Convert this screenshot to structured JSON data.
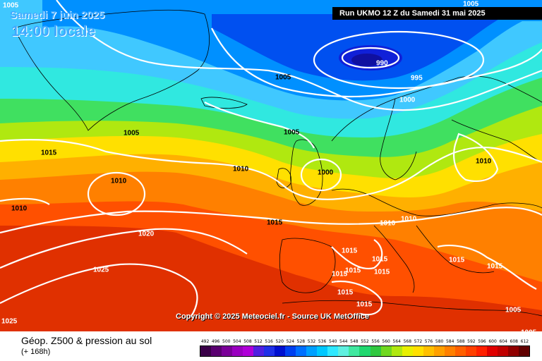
{
  "header": {
    "date": "Samedi 7 juin 2025",
    "time": "14:00 locale",
    "run": "Run UKMO 12 Z du Samedi 31 mai 2025"
  },
  "copyright": "Copyright © 2025 Meteociel.fr - Source UK MetOffice",
  "footer": {
    "title": "Géop. Z500 & pression au sol",
    "subtitle": "(+ 168h)"
  },
  "legend": {
    "values": [
      "492",
      "496",
      "500",
      "504",
      "508",
      "512",
      "516",
      "520",
      "524",
      "528",
      "532",
      "536",
      "540",
      "544",
      "548",
      "552",
      "556",
      "560",
      "564",
      "568",
      "572",
      "576",
      "580",
      "584",
      "588",
      "592",
      "596",
      "600",
      "604",
      "608",
      "612"
    ],
    "colors": [
      "#3a0048",
      "#5a0070",
      "#7a0098",
      "#9a00c0",
      "#b000d8",
      "#5020e0",
      "#2030e8",
      "#0010d0",
      "#0040f0",
      "#0070ff",
      "#00a0ff",
      "#00c8ff",
      "#30e8ff",
      "#60f0e0",
      "#40e8a0",
      "#20d870",
      "#30c840",
      "#70d820",
      "#b0e810",
      "#e8f000",
      "#ffe000",
      "#ffc000",
      "#ffa000",
      "#ff8000",
      "#ff6000",
      "#ff4000",
      "#ff2000",
      "#e00000",
      "#c00000",
      "#900000",
      "#600000"
    ]
  },
  "isobar_labels": [
    {
      "text": "1005",
      "color": "#ffffff"
    },
    {
      "text": "990",
      "color": "#ffffff"
    },
    {
      "text": "995",
      "color": "#ffffff"
    },
    {
      "text": "1000",
      "color": "#ffffff"
    },
    {
      "text": "1005",
      "color": "#000000"
    },
    {
      "text": "1005",
      "color": "#000000"
    },
    {
      "text": "1005",
      "color": "#000000"
    },
    {
      "text": "1015",
      "color": "#000000"
    },
    {
      "text": "1010",
      "color": "#000000"
    },
    {
      "text": "1010",
      "color": "#000000"
    },
    {
      "text": "1000",
      "color": "#000000"
    },
    {
      "text": "1010",
      "color": "#000000"
    },
    {
      "text": "1010",
      "color": "#000000"
    },
    {
      "text": "1015",
      "color": "#000000"
    },
    {
      "text": "1020",
      "color": "#ffffff"
    },
    {
      "text": "1025",
      "color": "#ffffff"
    },
    {
      "text": "1010",
      "color": "#ffffff"
    },
    {
      "text": "1010",
      "color": "#ffffff"
    },
    {
      "text": "1015",
      "color": "#ffffff"
    },
    {
      "text": "1015",
      "color": "#ffffff"
    },
    {
      "text": "1015",
      "color": "#ffffff"
    },
    {
      "text": "1015",
      "color": "#ffffff"
    },
    {
      "text": "1015",
      "color": "#ffffff"
    },
    {
      "text": "1015",
      "color": "#ffffff"
    },
    {
      "text": "1015",
      "color": "#ffffff"
    },
    {
      "text": "1015",
      "color": "#ffffff"
    },
    {
      "text": "1015",
      "color": "#ffffff"
    },
    {
      "text": "1005",
      "color": "#ffffff"
    },
    {
      "text": "1025",
      "color": "#ffffff"
    },
    {
      "text": "1005",
      "color": "#ffffff"
    },
    {
      "text": "1005",
      "color": "#ffffff"
    }
  ]
}
